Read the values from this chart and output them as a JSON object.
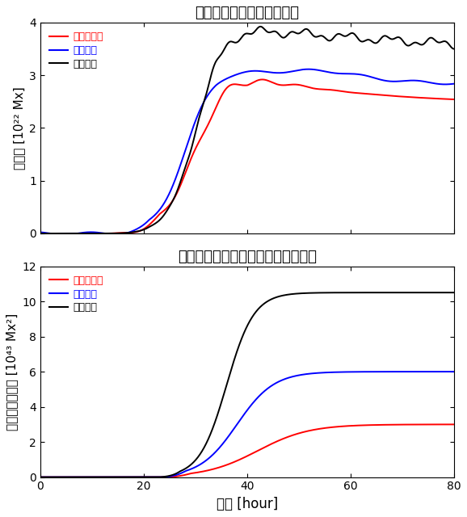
{
  "title1": "太陽表面に出現した磁束量",
  "title2": "コロナへ供給された磁気ヘリシティ",
  "xlabel": "時間 [hour]",
  "ylabel1": "磁束量 [10²² Mx]",
  "ylabel2": "磁気ヘリシティ [10⁴³ Mx²]",
  "legend_labels": [
    "ねじれゼロ",
    "ねじれ弱",
    "ねじれ強"
  ],
  "colors": [
    "red",
    "blue",
    "black"
  ],
  "xlim": [
    0,
    80
  ],
  "ylim1": [
    0,
    4
  ],
  "ylim2": [
    0,
    12
  ],
  "yticks1": [
    0,
    1,
    2,
    3,
    4
  ],
  "yticks2": [
    0,
    2,
    4,
    6,
    8,
    10,
    12
  ],
  "xticks": [
    0,
    20,
    40,
    60,
    80
  ]
}
